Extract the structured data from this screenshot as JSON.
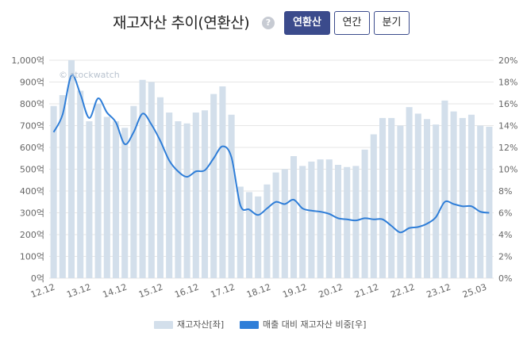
{
  "header": {
    "title": "재고자산 추이(연환산)",
    "help_icon": "?",
    "buttons": [
      {
        "label": "연환산",
        "active": true
      },
      {
        "label": "연간",
        "active": false
      },
      {
        "label": "분기",
        "active": false
      }
    ]
  },
  "watermark": "© stockwatch",
  "colors": {
    "bar": "#d3dfeb",
    "line": "#2f7ed8",
    "grid": "#e6e6e6",
    "axis_text": "#666666"
  },
  "legend": {
    "bar_label": "재고자산[좌]",
    "line_label": "매출 대비 재고자산 비중[우]"
  },
  "chart_data": {
    "type": "bar+line",
    "x_tick_labels": [
      "12.12",
      "13.12",
      "14.12",
      "15.12",
      "16.12",
      "17.12",
      "18.12",
      "19.12",
      "20.12",
      "21.12",
      "22.12",
      "23.12",
      "25.03"
    ],
    "y_left": {
      "ticks": [
        "0억",
        "100억",
        "200억",
        "300억",
        "400억",
        "500억",
        "600억",
        "700억",
        "800억",
        "900억",
        "1,000억"
      ],
      "range": [
        0,
        1000
      ],
      "unit": "억"
    },
    "y_right": {
      "ticks": [
        "0%",
        "2%",
        "4%",
        "6%",
        "8%",
        "10%",
        "12%",
        "14%",
        "16%",
        "18%",
        "20%"
      ],
      "range": [
        0,
        20
      ],
      "unit": "%"
    },
    "series": [
      {
        "name": "재고자산[좌]",
        "type": "bar",
        "values": [
          790,
          840,
          1000,
          860,
          720,
          800,
          740,
          720,
          690,
          790,
          910,
          900,
          830,
          760,
          720,
          710,
          760,
          770,
          845,
          880,
          750,
          420,
          395,
          375,
          430,
          485,
          500,
          560,
          515,
          535,
          545,
          545,
          520,
          510,
          515,
          590,
          660,
          735,
          735,
          700,
          785,
          755,
          730,
          705,
          815,
          765,
          735,
          750,
          700,
          695
        ]
      },
      {
        "name": "매출 대비 재고자산 비중[우]",
        "type": "line",
        "values": [
          13.4,
          15.0,
          18.6,
          16.9,
          14.7,
          16.5,
          15.2,
          14.3,
          12.3,
          13.4,
          15.1,
          14.1,
          12.6,
          10.8,
          9.8,
          9.3,
          9.8,
          9.9,
          11.0,
          12.1,
          11.1,
          6.7,
          6.3,
          5.8,
          6.4,
          7.0,
          6.8,
          7.2,
          6.4,
          6.2,
          6.1,
          5.9,
          5.5,
          5.4,
          5.3,
          5.5,
          5.4,
          5.4,
          4.8,
          4.2,
          4.6,
          4.7,
          5.0,
          5.6,
          7.0,
          6.8,
          6.6,
          6.6,
          6.1,
          6.0
        ]
      }
    ]
  }
}
